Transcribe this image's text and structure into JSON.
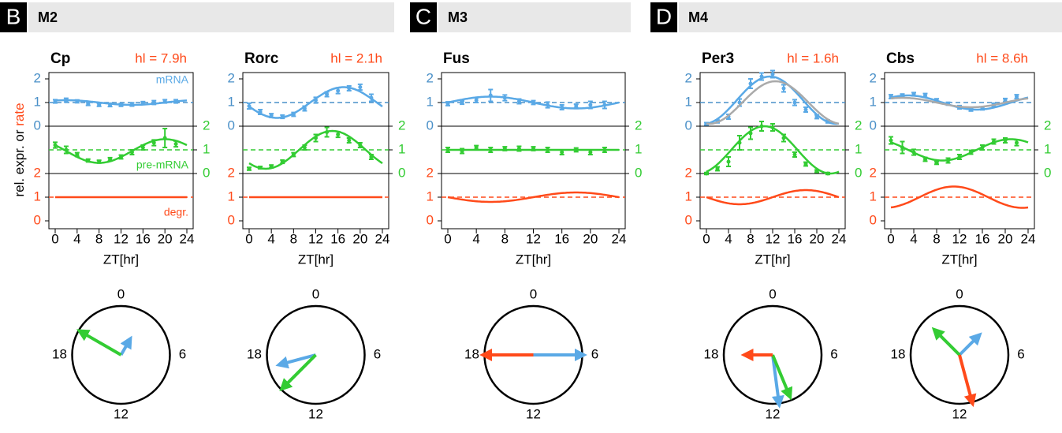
{
  "panels": [
    {
      "letter": "B",
      "label": "M2"
    },
    {
      "letter": "C",
      "label": "M3"
    },
    {
      "letter": "D",
      "label": "M4"
    }
  ],
  "y_axis_title": [
    "rel. expr. or",
    "rate"
  ],
  "chart_data": [
    {
      "type": "rhythm",
      "title": "Cp",
      "half_life": "hl = 7.9h",
      "xlabel": "ZT[hr]",
      "x": [
        0,
        2,
        4,
        6,
        8,
        10,
        12,
        14,
        16,
        18,
        20,
        22
      ],
      "xlim": [
        0,
        24
      ],
      "xticks": [
        0,
        4,
        8,
        12,
        16,
        20,
        24
      ],
      "ylim": [
        0,
        2
      ],
      "yticks": [
        0,
        1,
        2
      ],
      "reference": 1,
      "clock_ticks": [
        0,
        6,
        12,
        18
      ],
      "series": [
        {
          "name": "mRNA",
          "color": "#5aa9e6",
          "track": 0,
          "values": [
            1.05,
            1.1,
            1.05,
            0.95,
            0.9,
            0.9,
            0.9,
            0.92,
            0.98,
            1.0,
            1.05,
            1.05
          ],
          "errors": [
            0.07,
            0.08,
            0.06,
            0.07,
            0.06,
            0.07,
            0.06,
            0.07,
            0.06,
            0.08,
            0.07,
            0.07
          ],
          "mean": 1.0,
          "amplitude": 0.1,
          "peak": 2,
          "arrow": 0.35
        },
        {
          "name": "pre-mRNA",
          "color": "#33cc33",
          "track": 1,
          "values": [
            1.2,
            1.0,
            0.8,
            0.55,
            0.5,
            0.6,
            0.7,
            0.9,
            1.1,
            1.3,
            1.5,
            1.25
          ],
          "errors": [
            0.12,
            0.15,
            0.08,
            0.06,
            0.06,
            0.07,
            0.08,
            0.1,
            0.1,
            0.12,
            0.4,
            0.12
          ],
          "mean": 0.95,
          "amplitude": 0.5,
          "peak": 20,
          "arrow": 0.95
        },
        {
          "name": "degr.",
          "color": "#ff4a1a",
          "track": 2,
          "mean": 1.0,
          "amplitude": 0,
          "peak": 0
        }
      ]
    },
    {
      "type": "rhythm",
      "title": "Rorc",
      "half_life": "hl = 2.1h",
      "xlabel": "ZT[hr]",
      "x": [
        0,
        2,
        4,
        6,
        8,
        10,
        12,
        14,
        16,
        18,
        20,
        22
      ],
      "xlim": [
        0,
        24
      ],
      "xticks": [
        0,
        4,
        8,
        12,
        16,
        20,
        24
      ],
      "ylim": [
        0,
        2
      ],
      "yticks": [
        0,
        1,
        2
      ],
      "reference": 1,
      "clock_ticks": [
        0,
        6,
        12,
        18
      ],
      "series": [
        {
          "color": "#5aa9e6",
          "track": 0,
          "values": [
            0.85,
            0.6,
            0.45,
            0.4,
            0.5,
            0.75,
            1.1,
            1.35,
            1.5,
            1.6,
            1.65,
            1.2
          ],
          "errors": [
            0.12,
            0.1,
            0.08,
            0.07,
            0.08,
            0.1,
            0.12,
            0.1,
            0.12,
            0.1,
            0.12,
            0.15
          ],
          "mean": 1.0,
          "amplitude": 0.65,
          "peak": 17,
          "arrow": 0.75
        },
        {
          "color": "#33cc33",
          "track": 1,
          "values": [
            0.2,
            0.25,
            0.3,
            0.5,
            0.8,
            1.1,
            1.5,
            1.75,
            1.65,
            1.4,
            1.2,
            0.7
          ],
          "errors": [
            0.06,
            0.05,
            0.06,
            0.07,
            0.08,
            0.1,
            0.15,
            0.2,
            0.12,
            0.1,
            0.1,
            0.1
          ],
          "mean": 1.0,
          "amplitude": 0.8,
          "peak": 15,
          "arrow": 0.95
        },
        {
          "color": "#ff4a1a",
          "track": 2,
          "mean": 1.0,
          "amplitude": 0,
          "peak": 0
        }
      ]
    },
    {
      "type": "rhythm",
      "title": "Fus",
      "xlabel": "ZT[hr]",
      "x": [
        0,
        2,
        4,
        6,
        8,
        10,
        12,
        14,
        16,
        18,
        20,
        22
      ],
      "xlim": [
        0,
        24
      ],
      "xticks": [
        0,
        4,
        8,
        12,
        16,
        20,
        24
      ],
      "ylim": [
        0,
        2
      ],
      "yticks": [
        0,
        1,
        2
      ],
      "reference": 1,
      "clock_ticks": [
        0,
        6,
        12,
        18
      ],
      "series": [
        {
          "color": "#5aa9e6",
          "track": 0,
          "values": [
            0.95,
            1.0,
            1.1,
            1.3,
            1.2,
            1.05,
            1.0,
            0.9,
            0.8,
            0.85,
            0.9,
            0.9
          ],
          "errors": [
            0.08,
            0.07,
            0.1,
            0.25,
            0.12,
            0.1,
            0.08,
            0.12,
            0.1,
            0.08,
            0.15,
            0.15
          ],
          "mean": 1.0,
          "amplitude": 0.25,
          "peak": 6,
          "arrow": 1.0
        },
        {
          "color": "#33cc33",
          "track": 1,
          "values": [
            1.0,
            0.95,
            1.1,
            1.0,
            1.05,
            1.05,
            1.05,
            1.0,
            0.9,
            1.0,
            0.9,
            1.0
          ],
          "errors": [
            0.1,
            0.1,
            0.08,
            0.1,
            0.08,
            0.1,
            0.08,
            0.1,
            0.1,
            0.08,
            0.1,
            0.1
          ],
          "mean": 1.0,
          "amplitude": 0,
          "peak": 0
        },
        {
          "color": "#ff4a1a",
          "track": 2,
          "mean": 1.0,
          "amplitude": 0.2,
          "peak": 18,
          "arrow": 1.0
        }
      ]
    },
    {
      "type": "rhythm",
      "title": "Per3",
      "half_life": "hl = 1.6h",
      "xlabel": "ZT[hr]",
      "x": [
        0,
        2,
        4,
        6,
        8,
        10,
        12,
        14,
        16,
        18,
        20,
        22
      ],
      "xlim": [
        0,
        24
      ],
      "xticks": [
        0,
        4,
        8,
        12,
        16,
        20,
        24
      ],
      "ylim": [
        0,
        2
      ],
      "yticks": [
        0,
        1,
        2
      ],
      "reference": 1,
      "clock_ticks": [
        0,
        6,
        12,
        18
      ],
      "series": [
        {
          "color": "#5aa9e6",
          "track": 0,
          "values": [
            0.1,
            0.2,
            0.4,
            1.0,
            1.8,
            2.1,
            2.2,
            1.6,
            1.0,
            0.7,
            0.4,
            0.2
          ],
          "errors": [
            0.05,
            0.06,
            0.1,
            0.15,
            0.2,
            0.15,
            0.15,
            0.15,
            0.12,
            0.1,
            0.08,
            0.06
          ],
          "mean": 1.1,
          "amplitude": 1.0,
          "peak": 11.5,
          "arrow": 1.0
        },
        {
          "color": "#33cc33",
          "track": 1,
          "values": [
            0.0,
            0.2,
            0.5,
            1.3,
            1.7,
            2.0,
            1.95,
            1.5,
            0.8,
            0.4,
            0.1,
            0.0
          ],
          "errors": [
            0.04,
            0.08,
            0.2,
            0.3,
            0.25,
            0.2,
            0.15,
            0.15,
            0.1,
            0.08,
            0.05,
            0.04
          ],
          "mean": 1.0,
          "amplitude": 1.0,
          "peak": 10.5,
          "arrow": 0.9
        },
        {
          "color": "#ff4a1a",
          "track": 2,
          "mean": 1.0,
          "amplitude": 0.3,
          "peak": 18,
          "arrow": 0.55
        },
        {
          "color": "#aaaaaa",
          "track": 0,
          "mean": 1.0,
          "amplitude": 0.9,
          "peak": 12.5
        }
      ]
    },
    {
      "type": "rhythm",
      "title": "Cbs",
      "half_life": "hl = 8.6h",
      "xlabel": "ZT[hr]",
      "x": [
        0,
        2,
        4,
        6,
        8,
        10,
        12,
        14,
        16,
        18,
        20,
        22
      ],
      "xlim": [
        0,
        24
      ],
      "xticks": [
        0,
        4,
        8,
        12,
        16,
        20,
        24
      ],
      "ylim": [
        0,
        2
      ],
      "yticks": [
        0,
        1,
        2
      ],
      "reference": 1,
      "clock_ticks": [
        0,
        6,
        12,
        18
      ],
      "series": [
        {
          "color": "#5aa9e6",
          "track": 0,
          "values": [
            1.25,
            1.3,
            1.35,
            1.3,
            1.1,
            0.95,
            0.8,
            0.7,
            0.75,
            0.9,
            1.1,
            1.25
          ],
          "errors": [
            0.08,
            0.06,
            0.07,
            0.08,
            0.06,
            0.06,
            0.07,
            0.06,
            0.06,
            0.07,
            0.07,
            0.08
          ],
          "mean": 1.0,
          "amplitude": 0.3,
          "peak": 3,
          "arrow": 0.55
        },
        {
          "color": "#33cc33",
          "track": 1,
          "values": [
            1.4,
            1.1,
            0.9,
            0.6,
            0.45,
            0.55,
            0.7,
            0.9,
            1.1,
            1.35,
            1.4,
            1.3
          ],
          "errors": [
            0.15,
            0.25,
            0.12,
            0.08,
            0.06,
            0.1,
            0.1,
            0.08,
            0.1,
            0.1,
            0.1,
            0.12
          ],
          "mean": 1.0,
          "amplitude": 0.45,
          "peak": 21,
          "arrow": 0.7
        },
        {
          "color": "#ff4a1a",
          "track": 2,
          "mean": 1.0,
          "amplitude": 0.45,
          "peak": 11,
          "arrow": 1.0
        },
        {
          "color": "#aaaaaa",
          "track": 0,
          "mean": 1.0,
          "amplitude": 0.2,
          "peak": 2
        }
      ]
    }
  ]
}
